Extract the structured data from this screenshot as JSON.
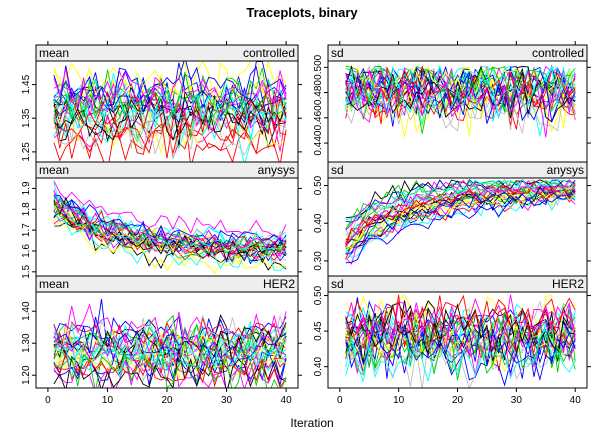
{
  "title": "Traceplots, binary",
  "xlabel": "Iteration",
  "chart_data": {
    "type": "line",
    "title": "Traceplots, binary",
    "xlabel": "Iteration",
    "x_range": [
      1,
      40
    ],
    "x_ticks": [
      0,
      10,
      20,
      30,
      40
    ],
    "n_chains": 30,
    "chain_colors": [
      "#000000",
      "#ff0000",
      "#00cd00",
      "#0000ff",
      "#00ffff",
      "#ff00ff",
      "#ffff00",
      "#bebebe"
    ],
    "panels": [
      {
        "statistic": "mean",
        "variable": "controlled",
        "ylim": [
          1.22,
          1.52
        ],
        "y_ticks": [
          1.25,
          1.35,
          1.45
        ],
        "y_tick_labels": [
          "1.25",
          "1.35",
          "1.45"
        ],
        "trend": {
          "start": 1.37,
          "end": 1.37,
          "spread_start": 0.045,
          "spread_end": 0.045,
          "noise": 0.035
        }
      },
      {
        "statistic": "sd",
        "variable": "controlled",
        "ylim": [
          0.425,
          0.505
        ],
        "y_ticks": [
          0.44,
          0.46,
          0.48,
          0.5
        ],
        "y_tick_labels": [
          "0.440",
          "0.460",
          "0.480",
          "0.500"
        ],
        "trend": {
          "start": 0.483,
          "end": 0.483,
          "spread_start": 0.008,
          "spread_end": 0.008,
          "noise": 0.01
        }
      },
      {
        "statistic": "mean",
        "variable": "anysys",
        "ylim": [
          1.48,
          1.95
        ],
        "y_ticks": [
          1.5,
          1.6,
          1.7,
          1.8,
          1.9
        ],
        "y_tick_labels": [
          "1.5",
          "1.6",
          "1.7",
          "1.8",
          "1.9"
        ],
        "trend": {
          "start": 1.82,
          "end": 1.6,
          "spread_start": 0.03,
          "spread_end": 0.03,
          "noise": 0.025
        }
      },
      {
        "statistic": "sd",
        "variable": "anysys",
        "ylim": [
          0.26,
          0.52
        ],
        "y_ticks": [
          0.3,
          0.4,
          0.5
        ],
        "y_tick_labels": [
          "0.30",
          "0.40",
          "0.50"
        ],
        "trend": {
          "start": 0.35,
          "end": 0.485,
          "spread_start": 0.03,
          "spread_end": 0.01,
          "noise": 0.012
        }
      },
      {
        "statistic": "mean",
        "variable": "HER2",
        "ylim": [
          1.16,
          1.46
        ],
        "y_ticks": [
          1.2,
          1.3,
          1.4
        ],
        "y_tick_labels": [
          "1.20",
          "1.30",
          "1.40"
        ],
        "trend": {
          "start": 1.27,
          "end": 1.27,
          "spread_start": 0.035,
          "spread_end": 0.035,
          "noise": 0.03
        }
      },
      {
        "statistic": "sd",
        "variable": "HER2",
        "ylim": [
          0.37,
          0.505
        ],
        "y_ticks": [
          0.4,
          0.45,
          0.5
        ],
        "y_tick_labels": [
          "0.40",
          "0.45",
          "0.50"
        ],
        "trend": {
          "start": 0.44,
          "end": 0.44,
          "spread_start": 0.018,
          "spread_end": 0.018,
          "noise": 0.018
        }
      }
    ]
  }
}
